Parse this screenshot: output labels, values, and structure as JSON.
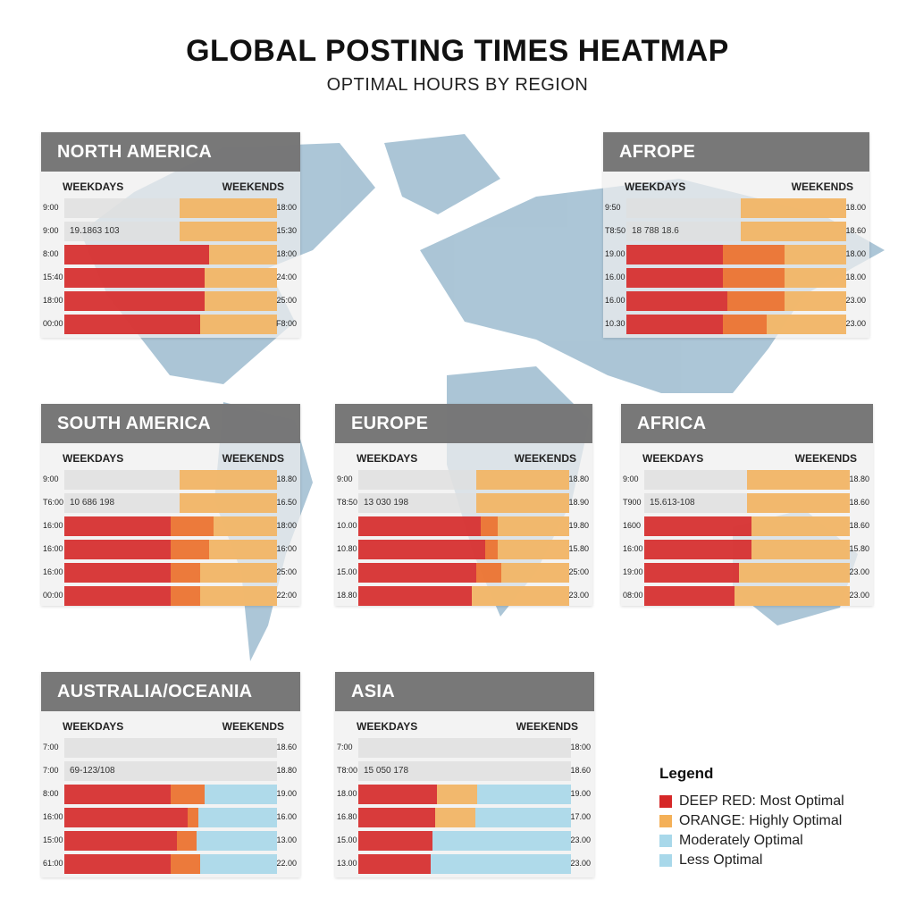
{
  "title": "GLOBAL POSTING TIMES HEATMAP",
  "subtitle": "OPTIMAL HOURS BY REGION",
  "colors": {
    "deep_red": "#d62828",
    "orange": "#ec6e28",
    "amber": "#f4b058",
    "light_blue": "#a8d8ea",
    "track": "#dedede",
    "header": "#6e6e6e",
    "map": "#9dbcd0"
  },
  "chart_data": {
    "type": "heatmap",
    "legend_position": "bottom-right",
    "panels": [
      {
        "region": "NORTH AMERICA",
        "left_header": "WEEKDAYS",
        "right_header": "WEEKENDS",
        "rows": [
          {
            "left_time": "9:00",
            "right_time": "18:00",
            "code": "",
            "segments": [
              [
                "track",
                0.54
              ],
              [
                "amber",
                0.46
              ]
            ]
          },
          {
            "left_time": "9:00",
            "right_time": "15:30",
            "code": "19.1863 103",
            "segments": [
              [
                "track",
                0.54
              ],
              [
                "amber",
                0.46
              ]
            ]
          },
          {
            "left_time": "8:00",
            "right_time": "18:00",
            "code": "",
            "segments": [
              [
                "red",
                0.68
              ],
              [
                "amber",
                0.32
              ]
            ]
          },
          {
            "left_time": "15:40",
            "right_time": "24:00",
            "code": "",
            "segments": [
              [
                "red",
                0.66
              ],
              [
                "amber",
                0.34
              ]
            ]
          },
          {
            "left_time": "18:00",
            "right_time": "25:00",
            "code": "",
            "segments": [
              [
                "red",
                0.66
              ],
              [
                "amber",
                0.34
              ]
            ]
          },
          {
            "left_time": "00:00",
            "right_time": "F8:00",
            "code": "",
            "segments": [
              [
                "red",
                0.64
              ],
              [
                "amber",
                0.36
              ]
            ]
          }
        ]
      },
      {
        "region": "AFROPE",
        "left_header": "WEEKDAYS",
        "right_header": "WEEKENDS",
        "rows": [
          {
            "left_time": "9:50",
            "right_time": "18.00",
            "code": "",
            "segments": [
              [
                "track",
                0.52
              ],
              [
                "amber",
                0.48
              ]
            ]
          },
          {
            "left_time": "T8:50",
            "right_time": "18.60",
            "code": "18 788 18.6",
            "segments": [
              [
                "track",
                0.52
              ],
              [
                "amber",
                0.48
              ]
            ]
          },
          {
            "left_time": "19.00",
            "right_time": "18.00",
            "code": "",
            "segments": [
              [
                "red",
                0.44
              ],
              [
                "orange",
                0.28
              ],
              [
                "amber",
                0.28
              ]
            ]
          },
          {
            "left_time": "16.00",
            "right_time": "18.00",
            "code": "",
            "segments": [
              [
                "red",
                0.44
              ],
              [
                "orange",
                0.28
              ],
              [
                "amber",
                0.28
              ]
            ]
          },
          {
            "left_time": "16.00",
            "right_time": "23.00",
            "code": "",
            "segments": [
              [
                "red",
                0.46
              ],
              [
                "orange",
                0.26
              ],
              [
                "amber",
                0.28
              ]
            ]
          },
          {
            "left_time": "10.30",
            "right_time": "23.00",
            "code": "",
            "segments": [
              [
                "red",
                0.44
              ],
              [
                "orange",
                0.2
              ],
              [
                "amber",
                0.36
              ]
            ]
          }
        ]
      },
      {
        "region": "SOUTH AMERICA",
        "left_header": "WEEKDAYS",
        "right_header": "WEEKENDS",
        "rows": [
          {
            "left_time": "9:00",
            "right_time": "18.80",
            "code": "",
            "segments": [
              [
                "track",
                0.54
              ],
              [
                "amber",
                0.46
              ]
            ]
          },
          {
            "left_time": "T6:00",
            "right_time": "16.50",
            "code": "10 686 198",
            "segments": [
              [
                "track",
                0.54
              ],
              [
                "amber",
                0.46
              ]
            ]
          },
          {
            "left_time": "16:00",
            "right_time": "18:00",
            "code": "",
            "segments": [
              [
                "red",
                0.5
              ],
              [
                "orange",
                0.2
              ],
              [
                "amber",
                0.3
              ]
            ]
          },
          {
            "left_time": "16:00",
            "right_time": "16:00",
            "code": "",
            "segments": [
              [
                "red",
                0.5
              ],
              [
                "orange",
                0.18
              ],
              [
                "amber",
                0.32
              ]
            ]
          },
          {
            "left_time": "16:00",
            "right_time": "25:00",
            "code": "",
            "segments": [
              [
                "red",
                0.5
              ],
              [
                "orange",
                0.14
              ],
              [
                "amber",
                0.36
              ]
            ]
          },
          {
            "left_time": "00:00",
            "right_time": "22:00",
            "code": "",
            "segments": [
              [
                "red",
                0.5
              ],
              [
                "orange",
                0.14
              ],
              [
                "amber",
                0.36
              ]
            ]
          }
        ]
      },
      {
        "region": "EUROPE",
        "left_header": "WEEKDAYS",
        "right_header": "WEEKENDS",
        "rows": [
          {
            "left_time": "9:00",
            "right_time": "18.80",
            "code": "",
            "segments": [
              [
                "track",
                0.56
              ],
              [
                "amber",
                0.44
              ]
            ]
          },
          {
            "left_time": "T8:50",
            "right_time": "18.90",
            "code": "13 030 198",
            "segments": [
              [
                "track",
                0.56
              ],
              [
                "amber",
                0.44
              ]
            ]
          },
          {
            "left_time": "10.00",
            "right_time": "19.80",
            "code": "",
            "segments": [
              [
                "red",
                0.58
              ],
              [
                "orange",
                0.08
              ],
              [
                "amber",
                0.34
              ]
            ]
          },
          {
            "left_time": "10.80",
            "right_time": "15.80",
            "code": "",
            "segments": [
              [
                "red",
                0.6
              ],
              [
                "orange",
                0.06
              ],
              [
                "amber",
                0.34
              ]
            ]
          },
          {
            "left_time": "15.00",
            "right_time": "25:00",
            "code": "",
            "segments": [
              [
                "red",
                0.56
              ],
              [
                "orange",
                0.12
              ],
              [
                "amber",
                0.32
              ]
            ]
          },
          {
            "left_time": "18.80",
            "right_time": "23.00",
            "code": "",
            "segments": [
              [
                "red",
                0.54
              ],
              [
                "amber",
                0.46
              ]
            ]
          }
        ]
      },
      {
        "region": "AFRICA",
        "left_header": "WEEKDAYS",
        "right_header": "WEEKENDS",
        "rows": [
          {
            "left_time": "9:00",
            "right_time": "18.80",
            "code": "",
            "segments": [
              [
                "track",
                0.5
              ],
              [
                "amber",
                0.5
              ]
            ]
          },
          {
            "left_time": "T900",
            "right_time": "18.60",
            "code": "15.613-108",
            "segments": [
              [
                "track",
                0.5
              ],
              [
                "amber",
                0.5
              ]
            ]
          },
          {
            "left_time": "1600",
            "right_time": "18.60",
            "code": "",
            "segments": [
              [
                "red",
                0.52
              ],
              [
                "amber",
                0.48
              ]
            ]
          },
          {
            "left_time": "16:00",
            "right_time": "15.80",
            "code": "",
            "segments": [
              [
                "red",
                0.52
              ],
              [
                "amber",
                0.48
              ]
            ]
          },
          {
            "left_time": "19:00",
            "right_time": "23.00",
            "code": "",
            "segments": [
              [
                "red",
                0.46
              ],
              [
                "amber",
                0.54
              ]
            ]
          },
          {
            "left_time": "08:00",
            "right_time": "23.00",
            "code": "",
            "segments": [
              [
                "red",
                0.44
              ],
              [
                "amber",
                0.56
              ]
            ]
          }
        ]
      },
      {
        "region": "AUSTRALIA/OCEANIA",
        "left_header": "WEEKDAYS",
        "right_header": "WEEKENDS",
        "rows": [
          {
            "left_time": "7:00",
            "right_time": "18.60",
            "code": "",
            "segments": [
              [
                "track",
                1.0
              ]
            ]
          },
          {
            "left_time": "7:00",
            "right_time": "18.80",
            "code": "69-123/108",
            "segments": [
              [
                "track",
                1.0
              ]
            ]
          },
          {
            "left_time": "8:00",
            "right_time": "19.00",
            "code": "",
            "segments": [
              [
                "red",
                0.5
              ],
              [
                "orange",
                0.16
              ],
              [
                "light",
                0.34
              ]
            ]
          },
          {
            "left_time": "16:00",
            "right_time": "16.00",
            "code": "",
            "segments": [
              [
                "red",
                0.58
              ],
              [
                "orange",
                0.05
              ],
              [
                "light",
                0.37
              ]
            ]
          },
          {
            "left_time": "15:00",
            "right_time": "13.00",
            "code": "",
            "segments": [
              [
                "red",
                0.53
              ],
              [
                "orange",
                0.09
              ],
              [
                "light",
                0.38
              ]
            ]
          },
          {
            "left_time": "61:00",
            "right_time": "22.00",
            "code": "",
            "segments": [
              [
                "red",
                0.5
              ],
              [
                "orange",
                0.14
              ],
              [
                "light",
                0.36
              ]
            ]
          }
        ]
      },
      {
        "region": "ASIA",
        "left_header": "WEEKDAYS",
        "right_header": "WEEKENDS",
        "rows": [
          {
            "left_time": "7:00",
            "right_time": "18:00",
            "code": "",
            "segments": [
              [
                "track",
                1.0
              ]
            ]
          },
          {
            "left_time": "T8:00",
            "right_time": "18.60",
            "code": "15 050 178",
            "segments": [
              [
                "track",
                1.0
              ]
            ]
          },
          {
            "left_time": "18.00",
            "right_time": "19.00",
            "code": "",
            "segments": [
              [
                "red",
                0.37
              ],
              [
                "amber",
                0.19
              ],
              [
                "light",
                0.44
              ]
            ]
          },
          {
            "left_time": "16.80",
            "right_time": "17.00",
            "code": "",
            "segments": [
              [
                "red",
                0.36
              ],
              [
                "amber",
                0.19
              ],
              [
                "light",
                0.45
              ]
            ]
          },
          {
            "left_time": "15.00",
            "right_time": "23.00",
            "code": "",
            "segments": [
              [
                "red",
                0.35
              ],
              [
                "light",
                0.65
              ]
            ]
          },
          {
            "left_time": "13.00",
            "right_time": "23.00",
            "code": "",
            "segments": [
              [
                "red",
                0.34
              ],
              [
                "light",
                0.66
              ]
            ]
          }
        ]
      }
    ],
    "legend": {
      "title": "Legend",
      "items": [
        {
          "label": "DEEP RED: Most Optimal",
          "color": "#d62828"
        },
        {
          "label": "ORANGE: Highly Optimal",
          "color": "#f4b058"
        },
        {
          "label": "Moderately Optimal",
          "color": "#a8d8ea"
        },
        {
          "label": "Less Optimal",
          "color": "#a8d8ea"
        }
      ]
    }
  }
}
